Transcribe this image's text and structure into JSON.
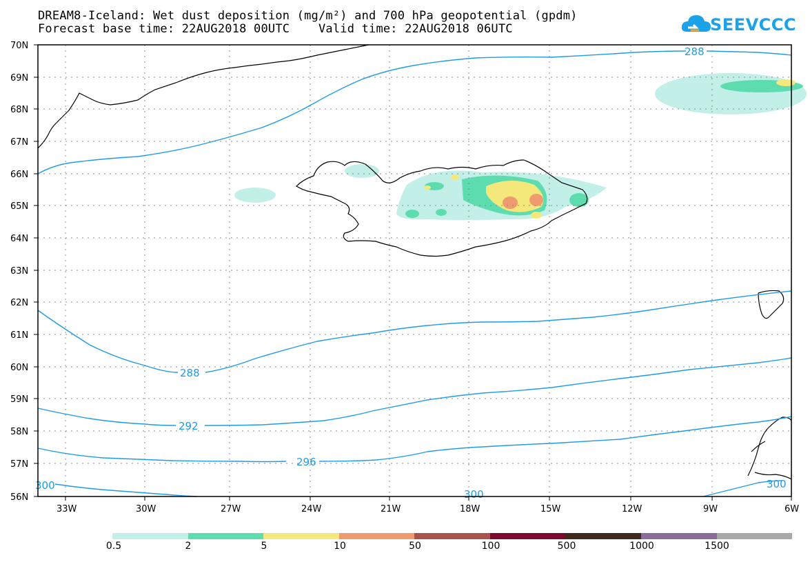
{
  "title_line1": "DREAM8-Iceland: Wet dust deposition (mg/m²) and 700 hPa geopotential (gpdm)",
  "title_line2": "Forecast base time: 22AUG2018 00UTC    Valid time: 22AUG2018 06UTC",
  "logo_text": "SEEVCCC",
  "logo_icon": "cloud-icon",
  "lat_labels": [
    "70N",
    "69N",
    "68N",
    "67N",
    "66N",
    "65N",
    "64N",
    "63N",
    "62N",
    "61N",
    "60N",
    "59N",
    "58N",
    "57N",
    "56N"
  ],
  "lon_labels": [
    "33W",
    "30W",
    "27W",
    "24W",
    "21W",
    "18W",
    "15W",
    "12W",
    "9W",
    "6W"
  ],
  "contour_labels": {
    "c288_top": "288",
    "c288_mid": "288",
    "c292": "292",
    "c296": "296",
    "c300_left": "300",
    "c300_mid": "300",
    "c300_right": "300"
  },
  "legend": {
    "colors": [
      "#c2efe8",
      "#5ddcb0",
      "#f5e87a",
      "#ef9a6f",
      "#a8544c",
      "#7d0a2c",
      "#3d2a1c",
      "#8a6c9c",
      "#a8a8a8"
    ],
    "labels": [
      "0.5",
      "2",
      "5",
      "10",
      "50",
      "100",
      "500",
      "1000",
      "1500"
    ]
  },
  "colors": {
    "contour": "#1e9be6",
    "coast": "#000000"
  }
}
